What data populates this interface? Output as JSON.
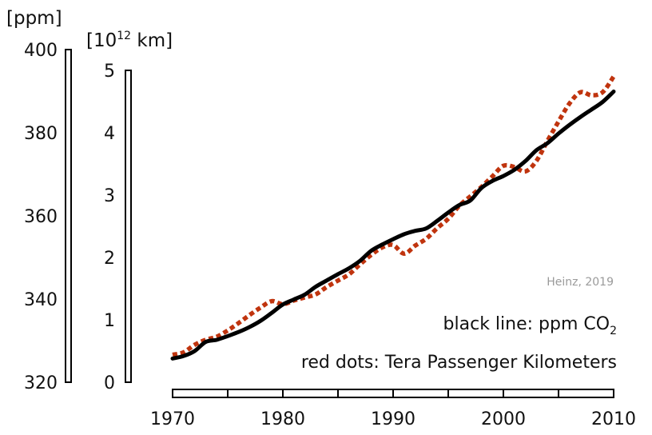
{
  "chart_data": {
    "type": "line",
    "x": [
      1970,
      1971,
      1972,
      1973,
      1974,
      1975,
      1976,
      1977,
      1978,
      1979,
      1980,
      1981,
      1982,
      1983,
      1984,
      1985,
      1986,
      1987,
      1988,
      1989,
      1990,
      1991,
      1992,
      1993,
      1994,
      1995,
      1996,
      1997,
      1998,
      1999,
      2000,
      2001,
      2002,
      2003,
      2004,
      2005,
      2006,
      2007,
      2008,
      2009,
      2010
    ],
    "x_ticks": [
      "1970",
      "1980",
      "1990",
      "2000",
      "2010"
    ],
    "series": [
      {
        "axis": "left",
        "style": "solid",
        "color": "#000000",
        "values": [
          325.7,
          326.3,
          327.5,
          329.7,
          330.2,
          331.1,
          332.1,
          333.3,
          334.8,
          336.7,
          338.7,
          339.9,
          341.1,
          343.0,
          344.5,
          346.0,
          347.4,
          349.2,
          351.6,
          353.1,
          354.4,
          355.6,
          356.4,
          357.0,
          358.8,
          360.8,
          362.6,
          363.7,
          366.7,
          368.4,
          369.6,
          371.1,
          373.2,
          375.8,
          377.5,
          379.8,
          381.9,
          383.8,
          385.6,
          387.4,
          389.9
        ]
      },
      {
        "axis": "right",
        "style": "dotted",
        "color": "#c0340e",
        "values": [
          0.44,
          0.48,
          0.6,
          0.68,
          0.73,
          0.83,
          0.95,
          1.08,
          1.2,
          1.3,
          1.25,
          1.31,
          1.36,
          1.41,
          1.53,
          1.63,
          1.73,
          1.89,
          2.04,
          2.16,
          2.2,
          2.06,
          2.19,
          2.3,
          2.47,
          2.62,
          2.83,
          2.98,
          3.13,
          3.3,
          3.47,
          3.45,
          3.38,
          3.55,
          3.87,
          4.18,
          4.47,
          4.65,
          4.6,
          4.65,
          4.9
        ]
      }
    ],
    "left_axis": {
      "unit": "[ppm]",
      "ylim": [
        320,
        400
      ],
      "ticks": [
        "320",
        "340",
        "360",
        "380",
        "400"
      ]
    },
    "right_axis": {
      "unit_base": "[10",
      "unit_exp": "12",
      "unit_rest": " km]",
      "ylim": [
        0,
        5
      ],
      "ticks": [
        "0",
        "1",
        "2",
        "3",
        "4",
        "5"
      ]
    },
    "credit": "Heinz, 2019",
    "legend": [
      {
        "text": "black line: ppm CO",
        "subscript": "2"
      },
      {
        "text": "red dots: Tera Passenger Kilometers",
        "subscript": ""
      }
    ],
    "grid": false
  }
}
